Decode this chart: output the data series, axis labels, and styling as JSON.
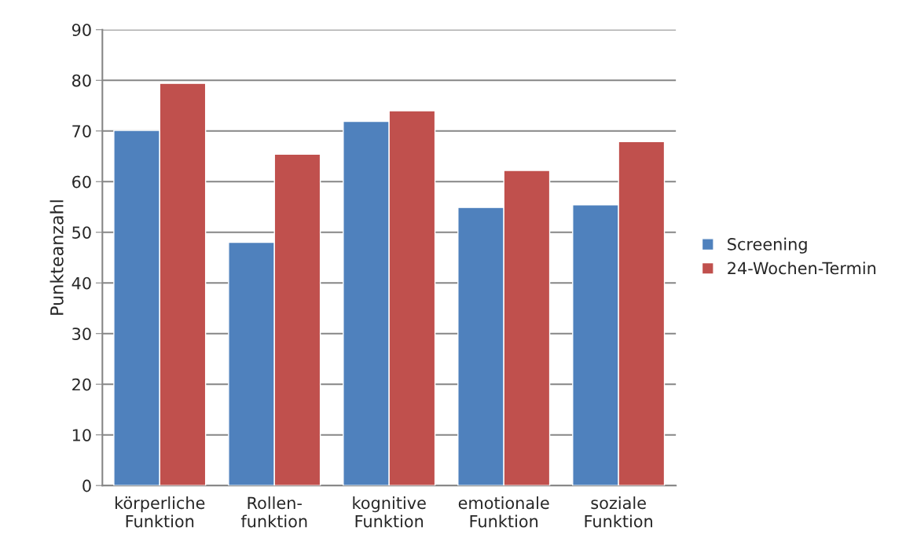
{
  "chart_data": {
    "type": "bar",
    "ylabel": "Punkteanzahl",
    "categories": [
      "körperliche\nFunktion",
      "Rollen-\nfunktion",
      "kognitive\nFunktion",
      "emotionale\nFunktion",
      "soziale\nFunktion"
    ],
    "series": [
      {
        "name": "Screening",
        "color": "#4f81bd",
        "values": [
          70.1,
          48.0,
          71.9,
          54.9,
          55.4
        ]
      },
      {
        "name": "24-Wochen-Termin",
        "color": "#c0504d",
        "values": [
          79.4,
          65.4,
          74.0,
          62.2,
          67.9
        ]
      }
    ],
    "ylim": [
      0,
      90
    ],
    "yticks": [
      0,
      10,
      20,
      30,
      40,
      50,
      60,
      70,
      80,
      90
    ],
    "grid": "y",
    "legend": "right"
  }
}
